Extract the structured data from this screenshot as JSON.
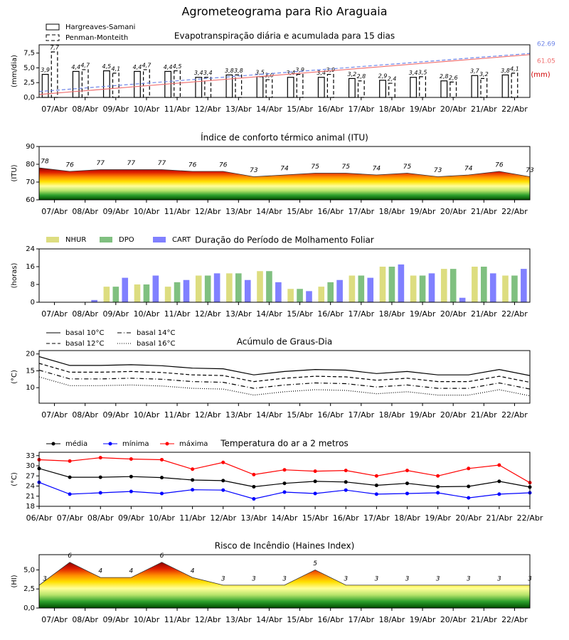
{
  "title": "Agrometeograma para Rio Araguaia",
  "chart_data": [
    {
      "type": "bar",
      "title": "Evapotranspiração diária e acumulada para 15 dias",
      "ylabel": "(mm/dia)",
      "y2label": "(mm)",
      "categories": [
        "07/Abr",
        "08/Abr",
        "09/Abr",
        "10/Abr",
        "11/Abr",
        "12/Abr",
        "13/Abr",
        "14/Abr",
        "15/Abr",
        "16/Abr",
        "17/Abr",
        "18/Abr",
        "19/Abr",
        "20/Abr",
        "21/Abr",
        "22/Abr"
      ],
      "xlim": [
        -0.5,
        15.5
      ],
      "ylim": [
        0,
        8.9
      ],
      "yticks": [
        {
          "value": 0,
          "label": "0,0"
        },
        {
          "value": 2.5,
          "label": "2,5"
        },
        {
          "value": 5,
          "label": "5,0"
        },
        {
          "value": 7.5,
          "label": "7,5"
        }
      ],
      "y2lim": [
        0,
        75
      ],
      "series": [
        {
          "name": "Hargreaves-Samani",
          "type": "bar",
          "color": "#000000",
          "fill": "#ffffff",
          "linestyle": "solid",
          "values": [
            3.9,
            4.4,
            4.5,
            4.4,
            4.4,
            3.4,
            3.8,
            3.5,
            3.4,
            3.4,
            3.2,
            2.9,
            3.4,
            2.8,
            3.7,
            3.8
          ],
          "value_labels": [
            "3,9",
            "4,4",
            "4,5",
            "4,4",
            "4,4",
            "3,4",
            "3,8",
            "3,5",
            "3,4",
            "3,4",
            "3,2",
            "2,9",
            "3,4",
            "2,8",
            "3,7",
            "3,8"
          ]
        },
        {
          "name": "Penman-Monteith",
          "type": "bar",
          "color": "#000000",
          "fill": "#ffffff",
          "linestyle": "dashed",
          "values": [
            7.7,
            4.7,
            4.1,
            4.7,
            4.5,
            3.4,
            3.8,
            3.0,
            3.9,
            3.9,
            2.8,
            2.4,
            3.5,
            2.6,
            3.2,
            4.1
          ],
          "value_labels": [
            "7,7",
            "4,7",
            "4,1",
            "4,7",
            "4,5",
            "3,4",
            "3,8",
            "3,0",
            "3,9",
            "3,9",
            "2,8",
            "2,4",
            "3,5",
            "2,6",
            "3,2",
            "4,1"
          ]
        },
        {
          "type": "line",
          "axis": "y2",
          "color": "#f07070",
          "linestyle": "solid",
          "x": [
            -0.5,
            0.5,
            1.5,
            2.5,
            3.5,
            4.5,
            5.5,
            6.5,
            7.5,
            8.5,
            9.5,
            10.5,
            11.5,
            12.5,
            13.5,
            14.5,
            15.5
          ],
          "values": [
            4.2,
            7.8,
            11.3,
            14.9,
            18.4,
            22.0,
            25.5,
            29.1,
            32.6,
            36.2,
            39.7,
            43.3,
            46.8,
            50.4,
            53.9,
            57.5,
            61.05
          ]
        },
        {
          "type": "line",
          "axis": "y2",
          "color": "#6f86e8",
          "linestyle": "dashed",
          "x": [
            -0.5,
            0.5,
            1.5,
            2.5,
            3.5,
            4.5,
            5.5,
            6.5,
            7.5,
            8.5,
            9.5,
            10.5,
            11.5,
            12.5,
            13.5,
            14.5,
            15.5
          ],
          "values": [
            8.4,
            11.8,
            15.2,
            18.6,
            22.0,
            25.4,
            28.8,
            32.1,
            35.5,
            38.9,
            42.3,
            45.7,
            49.1,
            52.5,
            55.9,
            59.3,
            62.69
          ]
        }
      ]
    },
    {
      "type": "area",
      "title": "Índice de conforto térmico animal (ITU)",
      "ylabel": "(ITU)",
      "categories": [
        "07/Abr",
        "08/Abr",
        "09/Abr",
        "10/Abr",
        "11/Abr",
        "12/Abr",
        "13/Abr",
        "14/Abr",
        "15/Abr",
        "16/Abr",
        "17/Abr",
        "18/Abr",
        "19/Abr",
        "20/Abr",
        "21/Abr",
        "22/Abr"
      ],
      "xlim": [
        -0.5,
        15.5
      ],
      "x": [
        -0.5,
        0.5,
        1.5,
        2.5,
        3.5,
        4.5,
        5.5,
        6.5,
        7.5,
        8.5,
        9.5,
        10.5,
        11.5,
        12.5,
        13.5,
        14.5,
        15.5
      ],
      "values": [
        78,
        76,
        77,
        77,
        77,
        76,
        76,
        73,
        74,
        75,
        75,
        74,
        75,
        73,
        74,
        76,
        73
      ],
      "ylim": [
        60,
        90
      ],
      "yticks": [
        60,
        70,
        80,
        90
      ],
      "color": "#333333",
      "data_labels": true,
      "gradient": [
        "#004d00",
        "#2ca02c",
        "#b6e36a",
        "#ffff99",
        "#ffe000",
        "#ff8c00",
        "#e02000",
        "#8b0000"
      ]
    },
    {
      "type": "bar",
      "title": "Duração do Período de Molhamento Foliar",
      "ylabel": "(horas)",
      "categories": [
        "07/Abr",
        "08/Abr",
        "09/Abr",
        "10/Abr",
        "11/Abr",
        "12/Abr",
        "13/Abr",
        "14/Abr",
        "15/Abr",
        "16/Abr",
        "17/Abr",
        "18/Abr",
        "19/Abr",
        "20/Abr",
        "21/Abr",
        "22/Abr"
      ],
      "xlim": [
        -0.5,
        15.5
      ],
      "ylim": [
        0,
        24
      ],
      "yticks": [
        0,
        8,
        16,
        24
      ],
      "series": [
        {
          "name": "NHUR",
          "color": "#dddd80",
          "values": [
            0,
            0,
            7,
            8,
            7,
            12,
            13,
            14,
            6,
            7,
            12,
            16,
            12,
            15,
            16,
            12
          ]
        },
        {
          "name": "DPO",
          "color": "#80c080",
          "values": [
            0,
            0,
            7,
            8,
            9,
            12,
            13,
            14,
            6,
            9,
            12,
            16,
            12,
            15,
            16,
            12
          ]
        },
        {
          "name": "CART",
          "color": "#8080ff",
          "values": [
            0,
            1,
            11,
            12,
            10,
            13,
            10,
            9,
            5,
            10,
            11,
            17,
            13,
            2,
            13,
            15
          ]
        }
      ]
    },
    {
      "type": "line",
      "title": "Acúmulo de Graus-Dia",
      "ylabel": "(°C)",
      "categories": [
        "07/Abr",
        "08/Abr",
        "09/Abr",
        "10/Abr",
        "11/Abr",
        "12/Abr",
        "13/Abr",
        "14/Abr",
        "15/Abr",
        "16/Abr",
        "17/Abr",
        "18/Abr",
        "19/Abr",
        "20/Abr",
        "21/Abr",
        "22/Abr"
      ],
      "xlim": [
        -0.5,
        15.5
      ],
      "x": [
        -0.5,
        0.5,
        1.5,
        2.5,
        3.5,
        4.5,
        5.5,
        6.5,
        7.5,
        8.5,
        9.5,
        10.5,
        11.5,
        12.5,
        13.5,
        14.5,
        15.5
      ],
      "ylim": [
        5.4,
        21
      ],
      "yticks": [
        10,
        15,
        20
      ],
      "series": [
        {
          "name": "basal 10°C",
          "color": "#000000",
          "linestyle": "solid",
          "values": [
            19.2,
            16.6,
            16.6,
            16.8,
            16.5,
            15.8,
            15.6,
            13.8,
            14.8,
            15.4,
            15.2,
            14.2,
            14.8,
            13.8,
            13.8,
            15.4,
            13.6
          ]
        },
        {
          "name": "basal 12°C",
          "color": "#000000",
          "linestyle": "dashed",
          "values": [
            17.2,
            14.6,
            14.6,
            14.8,
            14.5,
            13.8,
            13.6,
            11.8,
            12.8,
            13.4,
            13.2,
            12.2,
            12.8,
            11.8,
            11.8,
            13.4,
            11.6
          ]
        },
        {
          "name": "basal 14°C",
          "color": "#000000",
          "linestyle": "dashdot",
          "values": [
            15.2,
            12.6,
            12.6,
            12.8,
            12.5,
            11.8,
            11.6,
            9.8,
            10.8,
            11.4,
            11.2,
            10.2,
            10.8,
            9.8,
            9.8,
            11.4,
            9.6
          ]
        },
        {
          "name": "basal 16°C",
          "color": "#000000",
          "linestyle": "dotted",
          "values": [
            13.2,
            10.6,
            10.6,
            10.8,
            10.5,
            9.8,
            9.6,
            7.8,
            8.8,
            9.4,
            9.2,
            8.2,
            8.8,
            7.8,
            7.8,
            9.4,
            7.6
          ]
        }
      ]
    },
    {
      "type": "line",
      "title": "Temperatura do ar a 2 metros",
      "ylabel": "(°C)",
      "categories": [
        "06/Abr",
        "07/Abr",
        "08/Abr",
        "09/Abr",
        "10/Abr",
        "11/Abr",
        "12/Abr",
        "13/Abr",
        "14/Abr",
        "15/Abr",
        "16/Abr",
        "17/Abr",
        "18/Abr",
        "19/Abr",
        "20/Abr",
        "21/Abr",
        "22/Abr"
      ],
      "xlim": [
        0,
        16
      ],
      "ylim": [
        18,
        34
      ],
      "yticks": [
        18,
        21,
        24,
        27,
        30,
        33
      ],
      "series": [
        {
          "name": "média",
          "color": "#000000",
          "linestyle": "solid",
          "marker": "circle",
          "values": [
            29.2,
            26.6,
            26.6,
            26.8,
            26.5,
            25.8,
            25.6,
            23.8,
            24.8,
            25.4,
            25.2,
            24.2,
            24.8,
            23.8,
            23.9,
            25.4,
            23.7
          ]
        },
        {
          "name": "mínima",
          "color": "#0000ff",
          "linestyle": "solid",
          "marker": "circle",
          "values": [
            25.1,
            21.6,
            22.0,
            22.4,
            21.8,
            22.9,
            22.8,
            20.2,
            22.2,
            21.8,
            22.8,
            21.6,
            21.8,
            22.0,
            20.5,
            21.6,
            22.0
          ]
        },
        {
          "name": "máxima",
          "color": "#ff0000",
          "linestyle": "solid",
          "marker": "circle",
          "values": [
            31.8,
            31.4,
            32.4,
            32.0,
            31.8,
            29.0,
            31.0,
            27.4,
            28.8,
            28.4,
            28.6,
            27.0,
            28.6,
            27.0,
            29.2,
            30.2,
            25.0
          ]
        }
      ]
    },
    {
      "type": "area",
      "title": "Risco de Incêndio (Haines Index)",
      "ylabel": "(HI)",
      "categories": [
        "07/Abr",
        "08/Abr",
        "09/Abr",
        "10/Abr",
        "11/Abr",
        "12/Abr",
        "13/Abr",
        "14/Abr",
        "15/Abr",
        "16/Abr",
        "17/Abr",
        "18/Abr",
        "19/Abr",
        "20/Abr",
        "21/Abr",
        "22/Abr"
      ],
      "xlim": [
        -0.5,
        15.5
      ],
      "x": [
        -0.5,
        0.5,
        1.5,
        2.5,
        3.5,
        4.5,
        5.5,
        6.5,
        7.5,
        8.5,
        9.5,
        10.5,
        11.5,
        12.5,
        13.5,
        14.5,
        15.5
      ],
      "values": [
        3,
        6,
        4,
        4,
        6,
        4,
        3,
        3,
        3,
        5,
        3,
        3,
        3,
        3,
        3,
        3,
        3
      ],
      "ylim": [
        0,
        7
      ],
      "yticks": [
        {
          "value": 0,
          "label": "0,0"
        },
        {
          "value": 2.5,
          "label": "2,5"
        },
        {
          "value": 5,
          "label": "5,0"
        }
      ],
      "color": "#333333",
      "data_labels": true,
      "gradient": [
        "#004d00",
        "#2ca02c",
        "#b6e36a",
        "#ffff99",
        "#ffe000",
        "#ff8c00",
        "#e02000",
        "#8b0000"
      ]
    }
  ]
}
